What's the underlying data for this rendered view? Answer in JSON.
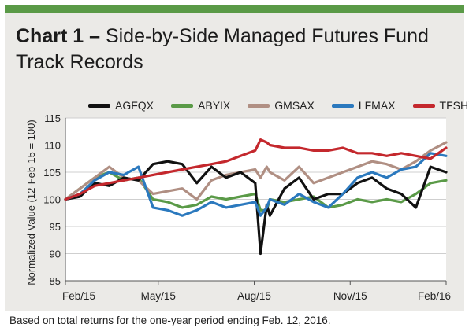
{
  "colors": {
    "top_bar": "#5a9a47",
    "panel_bg": "#ebeae7",
    "plot_bg": "#ffffff",
    "AGFQX": "#111111",
    "ABYIX": "#5a9a47",
    "GMSAX": "#b08f83",
    "LFMAX": "#2b79be",
    "TFSHX": "#c4282d"
  },
  "title": {
    "lead": "Chart 1 –",
    "rest": "Side-by-Side Managed Futures Fund Track Records"
  },
  "footer": "Based on total returns for the one-year period ending Feb. 12, 2016.",
  "chart_data": {
    "type": "line",
    "title": "Chart 1 – Side-by-Side Managed Futures Fund Track Records",
    "ylabel": "Normalized Value (12-Feb-15 = 100)",
    "xlabel": "",
    "ylim": [
      85,
      115
    ],
    "yticks": [
      85,
      90,
      95,
      100,
      105,
      110,
      115
    ],
    "xlim": [
      "2015-02-12",
      "2016-02-12"
    ],
    "xticks": [
      {
        "label": "Feb/15",
        "date": "2015-02-12"
      },
      {
        "label": "May/15",
        "date": "2015-05-12"
      },
      {
        "label": "Aug/15",
        "date": "2015-08-12"
      },
      {
        "label": "Nov/15",
        "date": "2015-11-12"
      },
      {
        "label": "Feb/16",
        "date": "2016-02-12"
      }
    ],
    "grid": "horizontal",
    "legend": "top",
    "x": [
      "2015-02-12",
      "2015-02-26",
      "2015-03-12",
      "2015-03-26",
      "2015-04-09",
      "2015-04-23",
      "2015-05-07",
      "2015-05-21",
      "2015-06-04",
      "2015-06-18",
      "2015-07-02",
      "2015-07-16",
      "2015-07-30",
      "2015-08-13",
      "2015-08-18",
      "2015-08-24",
      "2015-08-27",
      "2015-09-10",
      "2015-09-24",
      "2015-10-08",
      "2015-10-22",
      "2015-11-05",
      "2015-11-19",
      "2015-12-03",
      "2015-12-17",
      "2015-12-31",
      "2016-01-14",
      "2016-01-28",
      "2016-02-12"
    ],
    "series": [
      {
        "name": "AGFQX",
        "values": [
          100,
          100.5,
          103,
          102.5,
          104,
          103.5,
          106.5,
          107,
          106.5,
          103,
          106,
          104,
          105,
          103,
          90,
          99,
          97,
          102,
          104,
          100,
          101,
          101,
          103,
          104,
          102,
          101,
          98.5,
          106,
          105
        ]
      },
      {
        "name": "ABYIX",
        "values": [
          100,
          102,
          104,
          105,
          103.5,
          104,
          100,
          99.5,
          98.5,
          99,
          100.5,
          100,
          100.5,
          101,
          98,
          98,
          100,
          99.5,
          100,
          100.5,
          98.5,
          99,
          100,
          99.5,
          100,
          99.5,
          101,
          103,
          103.5
        ]
      },
      {
        "name": "GMSAX",
        "values": [
          100,
          102,
          104,
          106,
          104,
          103.5,
          101,
          101.5,
          102,
          100,
          103.5,
          104.5,
          105,
          105.5,
          104,
          106,
          105,
          103.5,
          106,
          103,
          104,
          105,
          106,
          107,
          106.5,
          105.5,
          107,
          109,
          110.5
        ]
      },
      {
        "name": "LFMAX",
        "values": [
          100,
          101,
          103.5,
          105,
          104.5,
          106,
          98.5,
          98,
          97,
          98,
          99.5,
          98.5,
          99,
          99.5,
          97,
          98.5,
          100,
          99,
          101,
          99.5,
          98.5,
          101,
          104,
          105,
          104,
          105.5,
          106,
          108.5,
          108
        ]
      },
      {
        "name": "TFSHX",
        "values": [
          100,
          101,
          102.5,
          103,
          103.5,
          104,
          104.5,
          105,
          105.5,
          106,
          106.5,
          107,
          108,
          109,
          111,
          110.5,
          110,
          109.5,
          109.5,
          109,
          109,
          109.5,
          108.5,
          108.5,
          108,
          108.5,
          108,
          107.5,
          109.5
        ]
      }
    ]
  }
}
